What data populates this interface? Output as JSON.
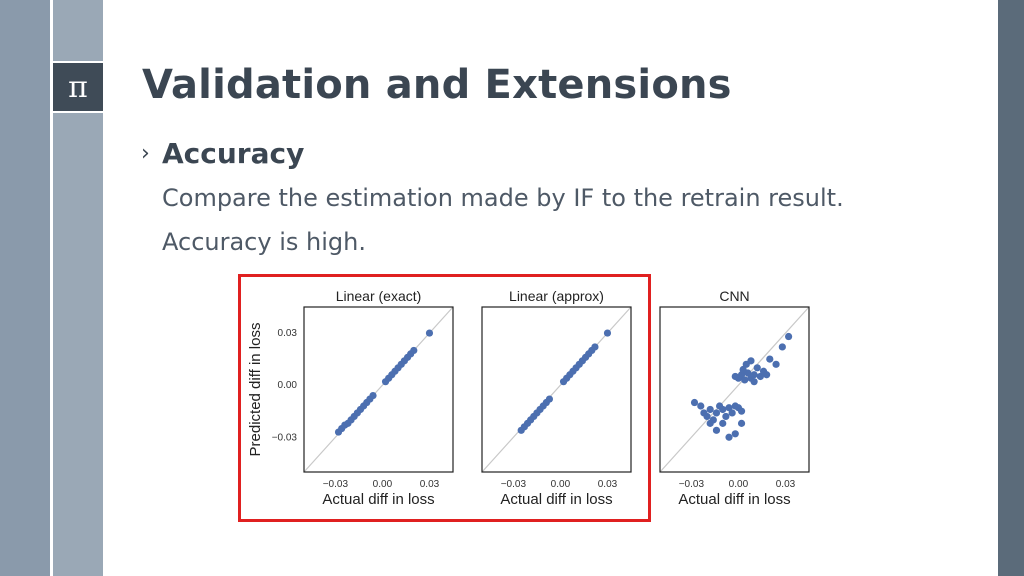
{
  "slide": {
    "pi_symbol": "π",
    "title": "Validation and Extensions",
    "bullet_marker": "›",
    "bullet_heading": "Accuracy",
    "lines": [
      "Compare the estimation made by IF to the retrain result.",
      "Accuracy is high."
    ]
  },
  "colors": {
    "title": "#3b4652",
    "body_text": "#4e5966",
    "point": "#4c6fb0",
    "diagonal": "#c8c8c8",
    "highlight": "#e02020"
  },
  "chart_data": [
    {
      "type": "scatter",
      "title": "Linear (exact)",
      "xlabel": "Actual diff in loss",
      "ylabel": "Predicted diff in loss",
      "xlim": [
        -0.05,
        0.045
      ],
      "ylim": [
        -0.05,
        0.045
      ],
      "xticks": [
        "−0.03",
        "0.00",
        "0.03"
      ],
      "yticks": [
        "0.03",
        "0.00",
        "−0.03"
      ],
      "points": [
        [
          -0.028,
          -0.027
        ],
        [
          -0.026,
          -0.025
        ],
        [
          -0.024,
          -0.023
        ],
        [
          -0.022,
          -0.022
        ],
        [
          -0.02,
          -0.02
        ],
        [
          -0.018,
          -0.018
        ],
        [
          -0.016,
          -0.016
        ],
        [
          -0.014,
          -0.014
        ],
        [
          -0.012,
          -0.012
        ],
        [
          -0.01,
          -0.01
        ],
        [
          -0.008,
          -0.008
        ],
        [
          -0.006,
          -0.006
        ],
        [
          0.002,
          0.002
        ],
        [
          0.004,
          0.004
        ],
        [
          0.006,
          0.006
        ],
        [
          0.008,
          0.008
        ],
        [
          0.01,
          0.01
        ],
        [
          0.012,
          0.012
        ],
        [
          0.014,
          0.014
        ],
        [
          0.016,
          0.016
        ],
        [
          0.018,
          0.018
        ],
        [
          0.02,
          0.02
        ],
        [
          0.03,
          0.03
        ]
      ]
    },
    {
      "type": "scatter",
      "title": "Linear (approx)",
      "xlabel": "Actual diff in loss",
      "ylabel": "",
      "xlim": [
        -0.05,
        0.045
      ],
      "ylim": [
        -0.05,
        0.045
      ],
      "xticks": [
        "−0.03",
        "0.00",
        "0.03"
      ],
      "yticks": [],
      "points": [
        [
          -0.025,
          -0.026
        ],
        [
          -0.023,
          -0.024
        ],
        [
          -0.021,
          -0.022
        ],
        [
          -0.019,
          -0.02
        ],
        [
          -0.017,
          -0.018
        ],
        [
          -0.015,
          -0.016
        ],
        [
          -0.013,
          -0.014
        ],
        [
          -0.011,
          -0.012
        ],
        [
          -0.009,
          -0.01
        ],
        [
          -0.007,
          -0.008
        ],
        [
          0.002,
          0.002
        ],
        [
          0.004,
          0.004
        ],
        [
          0.006,
          0.006
        ],
        [
          0.008,
          0.008
        ],
        [
          0.01,
          0.01
        ],
        [
          0.012,
          0.012
        ],
        [
          0.014,
          0.014
        ],
        [
          0.016,
          0.016
        ],
        [
          0.018,
          0.018
        ],
        [
          0.02,
          0.02
        ],
        [
          0.022,
          0.022
        ],
        [
          0.03,
          0.03
        ]
      ]
    },
    {
      "type": "scatter",
      "title": "CNN",
      "xlabel": "Actual diff in loss",
      "ylabel": "",
      "xlim": [
        -0.05,
        0.045
      ],
      "ylim": [
        -0.05,
        0.045
      ],
      "xticks": [
        "−0.03",
        "0.00",
        "0.03"
      ],
      "yticks": [],
      "points": [
        [
          -0.028,
          -0.01
        ],
        [
          -0.024,
          -0.012
        ],
        [
          -0.022,
          -0.016
        ],
        [
          -0.02,
          -0.018
        ],
        [
          -0.018,
          -0.014
        ],
        [
          -0.016,
          -0.02
        ],
        [
          -0.014,
          -0.016
        ],
        [
          -0.012,
          -0.012
        ],
        [
          -0.01,
          -0.014
        ],
        [
          -0.008,
          -0.018
        ],
        [
          -0.006,
          -0.013
        ],
        [
          -0.004,
          -0.016
        ],
        [
          -0.002,
          -0.012
        ],
        [
          0.0,
          -0.013
        ],
        [
          0.002,
          -0.015
        ],
        [
          -0.018,
          -0.022
        ],
        [
          -0.014,
          -0.026
        ],
        [
          -0.01,
          -0.022
        ],
        [
          -0.006,
          -0.03
        ],
        [
          -0.002,
          -0.028
        ],
        [
          0.002,
          -0.022
        ],
        [
          0.0,
          0.004
        ],
        [
          0.002,
          0.006
        ],
        [
          0.004,
          0.003
        ],
        [
          0.006,
          0.007
        ],
        [
          0.008,
          0.004
        ],
        [
          0.01,
          0.006
        ],
        [
          0.012,
          0.01
        ],
        [
          0.014,
          0.005
        ],
        [
          0.016,
          0.008
        ],
        [
          0.018,
          0.006
        ],
        [
          0.02,
          0.015
        ],
        [
          0.024,
          0.012
        ],
        [
          0.028,
          0.022
        ],
        [
          0.032,
          0.028
        ],
        [
          0.005,
          0.012
        ],
        [
          0.008,
          0.014
        ],
        [
          0.003,
          0.009
        ],
        [
          -0.002,
          0.005
        ],
        [
          0.01,
          0.002
        ]
      ]
    }
  ]
}
